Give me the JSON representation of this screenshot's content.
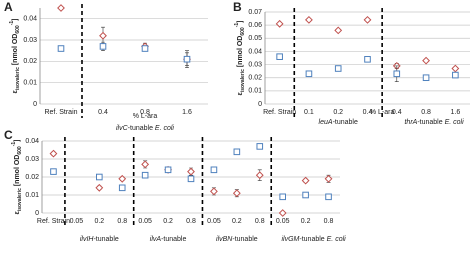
{
  "chart_data": [
    {
      "type": "scatter",
      "panel_label": "A",
      "y_label_parts": [
        {
          "text": "ε"
        },
        {
          "text": "isovaleric",
          "sub": true
        },
        {
          "text": " [nmol OD"
        },
        {
          "text": "600",
          "sub": true
        },
        {
          "text": "-1",
          "sup": true
        },
        {
          "text": "]"
        }
      ],
      "x_label": "% L-ara",
      "categories": [
        "Ref. Strain",
        "0.4",
        "0.8",
        "1.6"
      ],
      "dashed_after": [
        0
      ],
      "groups": [
        {
          "from": 1,
          "to": 3,
          "label_parts": [
            {
              "text": "ilvC",
              "italic": true
            },
            {
              "text": "-tunable "
            },
            {
              "text": "E. coli",
              "italic": true
            }
          ]
        }
      ],
      "ylim": [
        0,
        0.045
      ],
      "yticks": [
        0,
        0.01,
        0.02,
        0.03,
        0.04
      ],
      "grid": true,
      "series": [
        {
          "color": "#c0504d",
          "marker": "diamond",
          "values": [
            0.045,
            0.032,
            0.027,
            0.021
          ],
          "errors": [
            0.0005,
            0.004,
            0.0015,
            0.004
          ]
        },
        {
          "color": "#4f81bd",
          "marker": "square",
          "values": [
            0.026,
            0.027,
            0.026,
            0.021
          ],
          "errors": [
            0.0005,
            0.002,
            0.001,
            0.003
          ]
        }
      ]
    },
    {
      "type": "scatter",
      "panel_label": "B",
      "y_label_parts": [
        {
          "text": "ε"
        },
        {
          "text": "isovaleric",
          "sub": true
        },
        {
          "text": " [nmol OD"
        },
        {
          "text": "600",
          "sub": true
        },
        {
          "text": "-1",
          "sup": true
        },
        {
          "text": "]"
        }
      ],
      "x_label": "% L-ara",
      "categories": [
        "Ref. Strain",
        "0.1",
        "0.2",
        "0.4",
        "0.4",
        "0.8",
        "1.6"
      ],
      "dashed_after": [
        0,
        3
      ],
      "groups": [
        {
          "from": 1,
          "to": 3,
          "label_parts": [
            {
              "text": "leuA",
              "italic": true
            },
            {
              "text": "-tunable"
            }
          ]
        },
        {
          "from": 4,
          "to": 6,
          "label_parts": [
            {
              "text": "thrA",
              "italic": true
            },
            {
              "text": "-tunable "
            },
            {
              "text": "E. coli",
              "italic": true
            }
          ]
        }
      ],
      "ylim": [
        0,
        0.07
      ],
      "yticks": [
        0,
        0.01,
        0.02,
        0.03,
        0.04,
        0.05,
        0.06,
        0.07
      ],
      "grid": true,
      "series": [
        {
          "color": "#c0504d",
          "marker": "diamond",
          "values": [
            0.061,
            0.064,
            0.056,
            0.064,
            0.029,
            0.033,
            0.027
          ],
          "errors": [
            0.001,
            0.001,
            0.001,
            0.001,
            0.002,
            0.001,
            0.001
          ]
        },
        {
          "color": "#4f81bd",
          "marker": "square",
          "values": [
            0.036,
            0.023,
            0.027,
            0.034,
            0.023,
            0.02,
            0.022
          ],
          "errors": [
            0.002,
            0.001,
            0.001,
            0.001,
            0.006,
            0.002,
            0.001
          ]
        }
      ]
    },
    {
      "type": "scatter",
      "panel_label": "C",
      "y_label_parts": [
        {
          "text": "ε"
        },
        {
          "text": "isovaleric",
          "sub": true
        },
        {
          "text": " [nmol OD"
        },
        {
          "text": "600",
          "sub": true
        },
        {
          "text": "-1",
          "sup": true
        },
        {
          "text": "]"
        }
      ],
      "categories": [
        "Ref. Strain",
        "0.05",
        "0.2",
        "0.8",
        "0.05",
        "0.2",
        "0.8",
        "0.05",
        "0.2",
        "0.8",
        "0.05",
        "0.2",
        "0.8"
      ],
      "dashed_after": [
        0,
        3,
        6,
        9
      ],
      "groups": [
        {
          "from": 1,
          "to": 3,
          "label_parts": [
            {
              "text": "ilvIH",
              "italic": true
            },
            {
              "text": "-tunable"
            }
          ]
        },
        {
          "from": 4,
          "to": 6,
          "label_parts": [
            {
              "text": "ilvA",
              "italic": true
            },
            {
              "text": "-tunable"
            }
          ]
        },
        {
          "from": 7,
          "to": 9,
          "label_parts": [
            {
              "text": "ilvBN",
              "italic": true
            },
            {
              "text": "-tunable"
            }
          ]
        },
        {
          "from": 10,
          "to": 12,
          "label_parts": [
            {
              "text": "ilvGM",
              "italic": true
            },
            {
              "text": "-tunable "
            },
            {
              "text": "E. coli",
              "italic": true
            }
          ]
        }
      ],
      "ylim": [
        0,
        0.04
      ],
      "yticks": [
        0,
        0.01,
        0.02,
        0.03,
        0.04
      ],
      "grid": true,
      "series": [
        {
          "color": "#c0504d",
          "marker": "diamond",
          "values": [
            0.033,
            null,
            0.014,
            0.019,
            0.027,
            0.024,
            0.023,
            0.012,
            0.011,
            0.021,
            0,
            0.018,
            0.019
          ],
          "errors": [
            0.001,
            null,
            0.001,
            0.001,
            0.002,
            0.001,
            0.002,
            0.002,
            0.002,
            0.003,
            0,
            0.001,
            0.002
          ]
        },
        {
          "color": "#4f81bd",
          "marker": "square",
          "values": [
            0.023,
            null,
            0.02,
            0.014,
            0.021,
            0.024,
            0.019,
            0.024,
            0.034,
            0.037,
            0.009,
            0.01,
            0.009
          ],
          "errors": [
            0.001,
            null,
            0.001,
            0.001,
            0.001,
            0.001,
            0.001,
            0.001,
            0.001,
            0.001,
            0.001,
            0.001,
            0.001
          ]
        }
      ]
    }
  ]
}
